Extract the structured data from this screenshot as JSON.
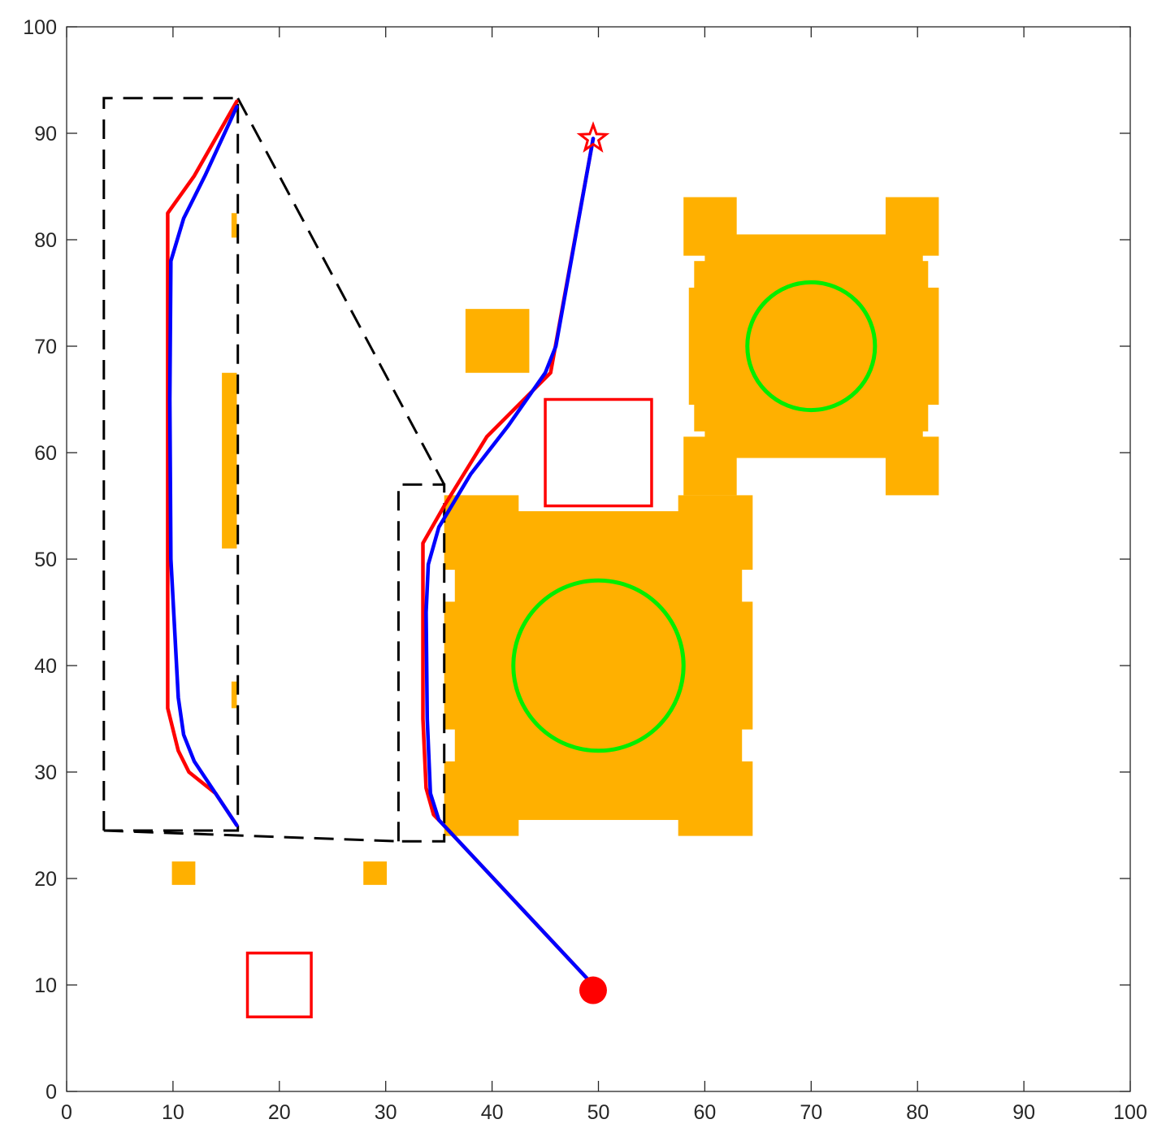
{
  "chart_data": {
    "type": "scatter",
    "title": "",
    "xlabel": "",
    "ylabel": "",
    "xlim": [
      0,
      100
    ],
    "ylim": [
      0,
      100
    ],
    "xticks": [
      "0",
      "10",
      "20",
      "30",
      "40",
      "50",
      "60",
      "70",
      "80",
      "90",
      "100"
    ],
    "yticks": [
      "0",
      "10",
      "20",
      "30",
      "40",
      "50",
      "60",
      "70",
      "80",
      "90",
      "100"
    ],
    "grid": false,
    "box": true,
    "colors": {
      "obstacle": "#ffb000",
      "red_path": "#ff0000",
      "blue_path": "#0000ff",
      "circle": "#00ee00",
      "square": "#ff0000",
      "dashed": "#000000",
      "start": "#ff0000",
      "goal": "#ff0000",
      "axis": "#262626"
    },
    "obstacles": [
      {
        "name": "block-upper",
        "x": [
          37.5,
          43.5
        ],
        "y": [
          67.5,
          73.5
        ]
      },
      {
        "name": "block-small-left",
        "x": [
          9.9,
          12.1
        ],
        "y": [
          19.4,
          21.6
        ]
      },
      {
        "name": "block-small-mid",
        "x": [
          27.9,
          30.1
        ],
        "y": [
          19.4,
          21.6
        ]
      },
      {
        "name": "strip-1",
        "x": [
          14.6,
          16.0
        ],
        "y": [
          51.0,
          67.5
        ]
      },
      {
        "name": "strip-2",
        "x": [
          15.5,
          16.0
        ],
        "y": [
          80.2,
          82.5
        ]
      },
      {
        "name": "strip-3",
        "x": [
          15.5,
          16.0
        ],
        "y": [
          36.0,
          38.5
        ]
      }
    ],
    "large_obstacles": [
      {
        "name": "lower",
        "center": [
          50,
          40
        ],
        "core_x": [
          36.5,
          63.5
        ],
        "core_y": [
          28.0,
          52.0
        ],
        "mid_x": [
          38.0,
          62.0
        ],
        "mid_y": [
          25.5,
          54.5
        ],
        "lobes": [
          {
            "x": [
              35.5,
              42.5
            ],
            "y": [
              24.0,
              31.0
            ]
          },
          {
            "x": [
              57.5,
              64.5
            ],
            "y": [
              24.0,
              31.0
            ]
          },
          {
            "x": [
              35.5,
              42.5
            ],
            "y": [
              49.0,
              56.0
            ]
          },
          {
            "x": [
              57.5,
              64.5
            ],
            "y": [
              49.0,
              56.0
            ]
          }
        ],
        "side_x": [
          35.5,
          64.5
        ],
        "side_y": [
          34.0,
          46.0
        ]
      },
      {
        "name": "upper",
        "center": [
          70,
          70
        ],
        "core_x": [
          58.5,
          82.0
        ],
        "core_y": [
          64.5,
          75.5
        ],
        "mid_x": [
          60.0,
          80.5
        ],
        "mid_y": [
          59.5,
          80.5
        ],
        "lobes": [
          {
            "x": [
              58.0,
              63.0
            ],
            "y": [
              56.0,
              61.5
            ]
          },
          {
            "x": [
              77.0,
              82.0
            ],
            "y": [
              56.0,
              61.5
            ]
          },
          {
            "x": [
              58.0,
              63.0
            ],
            "y": [
              78.5,
              84.0
            ]
          },
          {
            "x": [
              77.0,
              82.0
            ],
            "y": [
              78.5,
              84.0
            ]
          }
        ],
        "side_x": [
          59.0,
          81.0
        ],
        "side_y": [
          62.0,
          78.0
        ]
      }
    ],
    "circles": [
      {
        "name": "lower",
        "cx": 50,
        "cy": 40,
        "r": 8
      },
      {
        "name": "upper",
        "cx": 70,
        "cy": 70,
        "r": 6
      }
    ],
    "squares": [
      {
        "name": "lower-left",
        "x": [
          17,
          23
        ],
        "y": [
          7,
          13
        ]
      },
      {
        "name": "center",
        "x": [
          45,
          55
        ],
        "y": [
          55,
          65
        ]
      }
    ],
    "dashed_lines": [
      {
        "name": "left-rect",
        "points": [
          [
            3.5,
            24.5
          ],
          [
            3.5,
            93.3
          ],
          [
            16.1,
            93.3
          ],
          [
            16.1,
            24.5
          ],
          [
            3.5,
            24.5
          ]
        ]
      },
      {
        "name": "right-rect",
        "points": [
          [
            31.2,
            23.5
          ],
          [
            31.2,
            57.0
          ],
          [
            35.5,
            57.0
          ],
          [
            35.5,
            23.5
          ],
          [
            31.2,
            23.5
          ]
        ]
      },
      {
        "name": "connector-top",
        "points": [
          [
            16.1,
            93.3
          ],
          [
            35.5,
            57.0
          ]
        ]
      },
      {
        "name": "connector-bottom",
        "points": [
          [
            3.5,
            24.5
          ],
          [
            31.2,
            23.5
          ]
        ]
      }
    ],
    "series": [
      {
        "color": "red",
        "points": [
          [
            49.5,
            10
          ],
          [
            35,
            25.5
          ],
          [
            34.5,
            26
          ],
          [
            33.8,
            28.5
          ],
          [
            33.5,
            35
          ],
          [
            33.5,
            51.5
          ],
          [
            35.5,
            55
          ],
          [
            39.5,
            61.5
          ],
          [
            45.5,
            67.5
          ],
          [
            49.5,
            89.5
          ]
        ]
      },
      {
        "color": "red",
        "points": [
          [
            16,
            25
          ],
          [
            14,
            28
          ],
          [
            11.5,
            30
          ],
          [
            10.5,
            32
          ],
          [
            9.5,
            36
          ],
          [
            9.5,
            50
          ],
          [
            9.5,
            82.5
          ],
          [
            12,
            86
          ],
          [
            16,
            93
          ]
        ]
      },
      {
        "color": "blue",
        "points": [
          [
            49.5,
            10
          ],
          [
            35,
            25.5
          ],
          [
            34.2,
            28
          ],
          [
            33.9,
            35
          ],
          [
            33.8,
            45
          ],
          [
            34,
            49.5
          ],
          [
            35,
            53
          ],
          [
            38,
            58
          ],
          [
            41.5,
            62.5
          ],
          [
            45,
            67.5
          ],
          [
            46,
            70
          ],
          [
            49.5,
            89.5
          ]
        ]
      },
      {
        "color": "blue",
        "points": [
          [
            16,
            25
          ],
          [
            14,
            28
          ],
          [
            12,
            31
          ],
          [
            11,
            33.5
          ],
          [
            10.5,
            37
          ],
          [
            9.8,
            50
          ],
          [
            9.7,
            65
          ],
          [
            9.8,
            78
          ],
          [
            11,
            82
          ],
          [
            13,
            86
          ],
          [
            16,
            92.5
          ]
        ]
      }
    ],
    "start": {
      "x": 49.5,
      "y": 9.5
    },
    "goal": {
      "x": 49.5,
      "y": 89.5
    }
  }
}
